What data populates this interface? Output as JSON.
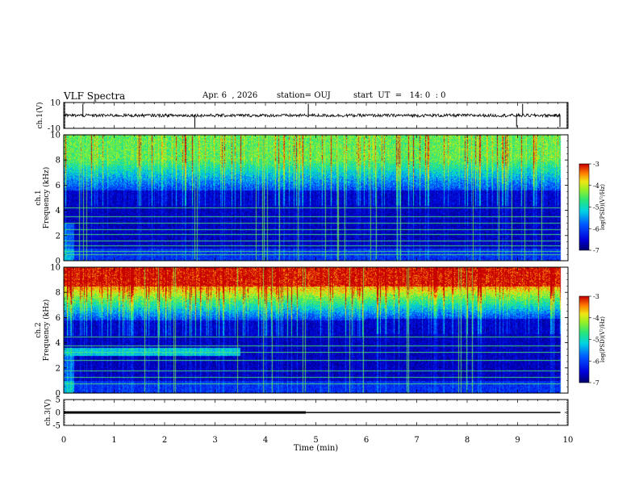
{
  "header": {
    "title": "VLF Spectra",
    "date": "Apr. 6  , 2026",
    "station": "station= OUJ",
    "start": "start  UT  =   14: 0  : 0"
  },
  "chart_data": [
    {
      "type": "line",
      "title": "ch.1 waveform",
      "ylabel": "ch.1(V)",
      "ylim": [
        -10,
        10
      ],
      "yticks": [
        "10",
        "-10"
      ],
      "baseline_v": 0,
      "noise_amplitude_v": 1.2,
      "spikes_min": [
        0.38,
        2.6,
        4.85,
        8.98,
        9.1,
        9.84
      ],
      "end_min": 9.85
    },
    {
      "type": "heatmap",
      "title": "ch.1 spectrogram",
      "ylabel": "ch.1 Frequency (kHz)",
      "ylim": [
        0,
        10
      ],
      "yticks": [
        "0",
        "2",
        "4",
        "6",
        "8",
        "10"
      ],
      "colorbar": {
        "label": "log(PSD)(V²/Hz)",
        "range": [
          -7,
          -3
        ],
        "ticks": [
          "-3",
          "-4",
          "-5",
          "-6",
          "-7"
        ]
      },
      "quiet_band_top_khz": 5.6,
      "active_band_level": -4.6,
      "lines_khz": [
        0.5,
        0.8,
        1.2,
        1.6,
        2.1,
        2.5,
        3.0,
        3.5,
        4.2
      ]
    },
    {
      "type": "heatmap",
      "title": "ch.2 spectrogram",
      "ylabel": "ch.2 Frequency (kHz)",
      "ylim": [
        0,
        10
      ],
      "yticks": [
        "0",
        "2",
        "4",
        "6",
        "8",
        "10"
      ],
      "colorbar": {
        "label": "log(PSD)(V²/Hz)",
        "range": [
          -7,
          -3
        ],
        "ticks": [
          "-3",
          "-4",
          "-5",
          "-6",
          "-7"
        ]
      },
      "quiet_band_top_khz": 5.8,
      "active_band_level": -3.8,
      "lines_khz": [
        0.8,
        1.3,
        1.8,
        2.6,
        3.3,
        3.8,
        4.5
      ],
      "band_3_4_khz_until_min": 3.5
    },
    {
      "type": "line",
      "title": "ch.3 trace",
      "ylabel": "ch.3(V)",
      "xlabel": "Time (min)",
      "ylim": [
        -5,
        5
      ],
      "yticks": [
        "5",
        "0",
        "-5"
      ],
      "level_v": 0,
      "thick_until_min": 4.8,
      "end_min": 9.85
    }
  ],
  "x_axis": {
    "label": "Time  (min)",
    "range": [
      0,
      10
    ],
    "ticks": [
      "0",
      "1",
      "2",
      "3",
      "4",
      "5",
      "6",
      "7",
      "8",
      "9",
      "10"
    ]
  }
}
